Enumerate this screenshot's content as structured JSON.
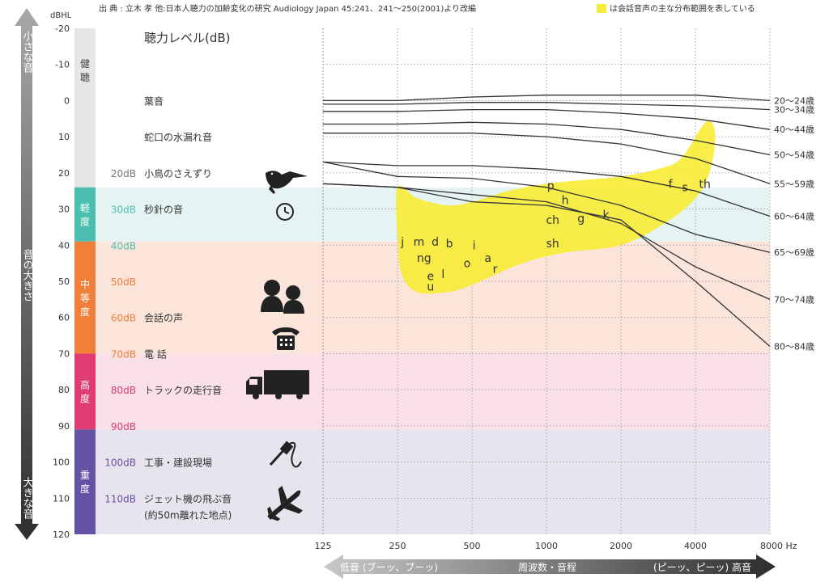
{
  "header": {
    "source": "出 典 : 立木 孝 他:日本人聴力の加齢変化の研究 Audiology Japan 45:241、241～250(2001)より改編",
    "legend_note": "は会話音声の主な分布範囲を表している",
    "y_unit": "dBHL"
  },
  "loudness_arrow": {
    "top": "小さな音",
    "middle": "音の大きさ",
    "bottom": "大きな音"
  },
  "freq_arrow": {
    "left": "低音 (ブーッ、ブーッ)",
    "center": "周波数・音程",
    "right": "(ピーッ、ピーッ) 高音"
  },
  "colors": {
    "normal": "#e6e6e6",
    "mild": "#4dbfb0",
    "mild_bg": "#e5f4f2",
    "moderate": "#f07f3a",
    "moderate_bg": "#fbe5da",
    "severe": "#e03c74",
    "severe_bg": "#f8e0e6",
    "profound": "#6652a4",
    "profound_bg": "#e7e4ee",
    "speech_banana": "#f7ec3a",
    "curves": "#333333"
  },
  "bands": [
    {
      "label": "健聴",
      "from": -20,
      "to": 24,
      "color": "#e6e6e6",
      "bg": "#ffffff",
      "text": "#444444"
    },
    {
      "label": "軽度",
      "from": 24,
      "to": 39,
      "color": "#4dbfb0",
      "bg": "#e5f4f2",
      "text": "#ffffff"
    },
    {
      "label": "中等度",
      "from": 39,
      "to": 70,
      "color": "#f07f3a",
      "bg": "#fbe5da",
      "text": "#ffffff"
    },
    {
      "label": "高度",
      "from": 70,
      "to": 91,
      "color": "#e03c74",
      "bg": "#f8e0e6",
      "text": "#ffffff"
    },
    {
      "label": "重度",
      "from": 91,
      "to": 120,
      "color": "#6652a4",
      "bg": "#e7e4ee",
      "text": "#ffffff"
    }
  ],
  "level_title": "聴力レベル(dB)",
  "sound_examples": [
    {
      "db": "",
      "text": "葉音",
      "y": 0
    },
    {
      "db": "",
      "text": "蛇口の水漏れ音",
      "y": 10
    },
    {
      "db": "20dB",
      "text": "小鳥のさえずり",
      "y": 20,
      "dbcolor": "#777777"
    },
    {
      "db": "30dB",
      "text": "秒針の音",
      "y": 30,
      "dbcolor": "#4dbfb0"
    },
    {
      "db": "40dB",
      "text": "",
      "y": 40,
      "dbcolor": "#4dbfb0"
    },
    {
      "db": "50dB",
      "text": "",
      "y": 50,
      "dbcolor": "#f07f3a"
    },
    {
      "db": "60dB",
      "text": "会話の声",
      "y": 60,
      "dbcolor": "#f07f3a"
    },
    {
      "db": "70dB",
      "text": "電 話",
      "y": 70,
      "dbcolor": "#f07f3a"
    },
    {
      "db": "80dB",
      "text": "トラックの走行音",
      "y": 80,
      "dbcolor": "#e03c74"
    },
    {
      "db": "90dB",
      "text": "",
      "y": 90,
      "dbcolor": "#e03c74"
    },
    {
      "db": "100dB",
      "text": "工事・建設現場",
      "y": 100,
      "dbcolor": "#6652a4"
    },
    {
      "db": "110dB",
      "text": "ジェット機の飛ぶ音",
      "y": 110,
      "dbcolor": "#6652a4"
    },
    {
      "db": "",
      "text": "(約50m離れた地点)",
      "y": 114.5
    }
  ],
  "icons": [
    "bird-icon",
    "clock-icon",
    "conversation-icon",
    "telephone-icon",
    "truck-icon",
    "drill-icon",
    "airplane-icon"
  ],
  "chart_data": {
    "type": "line",
    "title": "",
    "xlabel": "Hz",
    "ylabel": "dBHL",
    "x_scale": "log2",
    "ylim": [
      120,
      -20
    ],
    "y_reversed": true,
    "grid": true,
    "y_ticks": [
      "-20",
      "-10",
      "0",
      "10",
      "20",
      "30",
      "40",
      "50",
      "60",
      "70",
      "80",
      "90",
      "100",
      "110",
      "120"
    ],
    "x_ticks": [
      "125",
      "250",
      "500",
      "1000",
      "2000",
      "4000",
      "8000 Hz"
    ],
    "x": [
      125,
      250,
      500,
      1000,
      2000,
      4000,
      8000
    ],
    "series": [
      {
        "name": "20～24歳",
        "values": [
          0,
          0,
          -1,
          -1.5,
          -1.5,
          -1.5,
          0
        ]
      },
      {
        "name": "30～34歳",
        "values": [
          1,
          1,
          0.5,
          0.5,
          1,
          1.5,
          2.5
        ]
      },
      {
        "name": "40～44歳",
        "values": [
          3,
          3,
          2.5,
          2.5,
          3.5,
          5,
          8
        ]
      },
      {
        "name": "50～54歳",
        "values": [
          6.5,
          6.5,
          6,
          6.5,
          8,
          11,
          15
        ]
      },
      {
        "name": "55～59歳",
        "values": [
          9,
          9,
          9,
          10,
          12,
          16,
          23
        ]
      },
      {
        "name": "60～64歳",
        "values": [
          17,
          18,
          18,
          19,
          21,
          25,
          32
        ]
      },
      {
        "name": "65～69歳",
        "values": [
          17,
          21,
          21.5,
          24,
          29,
          37,
          42
        ]
      },
      {
        "name": "70～74歳",
        "values": [
          23,
          24,
          26,
          28,
          34,
          46,
          55
        ]
      },
      {
        "name": "80～84歳",
        "values": [
          23,
          24,
          28,
          29,
          33,
          50,
          68
        ]
      }
    ],
    "speech_banana_polygon": [
      [
        250,
        24
      ],
      [
        300,
        27
      ],
      [
        400,
        29
      ],
      [
        500,
        28
      ],
      [
        700,
        25
      ],
      [
        1000,
        23
      ],
      [
        1400,
        22
      ],
      [
        2000,
        21
      ],
      [
        2800,
        19
      ],
      [
        3500,
        16
      ],
      [
        4400,
        6
      ],
      [
        4800,
        9
      ],
      [
        4600,
        19
      ],
      [
        4000,
        27
      ],
      [
        3000,
        34
      ],
      [
        2000,
        40
      ],
      [
        1200,
        42
      ],
      [
        800,
        45
      ],
      [
        500,
        51
      ],
      [
        400,
        53
      ],
      [
        300,
        53
      ],
      [
        260,
        48
      ],
      [
        250,
        38
      ]
    ],
    "phonemes": [
      {
        "text": "j",
        "f": 262,
        "db": 39
      },
      {
        "text": "m",
        "f": 305,
        "db": 39
      },
      {
        "text": "d",
        "f": 355,
        "db": 39
      },
      {
        "text": "b",
        "f": 405,
        "db": 39.5
      },
      {
        "text": "ng",
        "f": 320,
        "db": 43.5
      },
      {
        "text": "e",
        "f": 340,
        "db": 48.5
      },
      {
        "text": "u",
        "f": 340,
        "db": 51.5
      },
      {
        "text": "l",
        "f": 382,
        "db": 48
      },
      {
        "text": "i",
        "f": 510,
        "db": 40
      },
      {
        "text": "o",
        "f": 478,
        "db": 45
      },
      {
        "text": "a",
        "f": 580,
        "db": 43.5
      },
      {
        "text": "r",
        "f": 620,
        "db": 46.5
      },
      {
        "text": "p",
        "f": 1040,
        "db": 23.5
      },
      {
        "text": "h",
        "f": 1190,
        "db": 27.5
      },
      {
        "text": "ch",
        "f": 1060,
        "db": 33
      },
      {
        "text": "g",
        "f": 1380,
        "db": 32.5
      },
      {
        "text": "sh",
        "f": 1060,
        "db": 39.5
      },
      {
        "text": "k",
        "f": 1740,
        "db": 31.5
      },
      {
        "text": "f",
        "f": 3170,
        "db": 23
      },
      {
        "text": "s",
        "f": 3630,
        "db": 24
      },
      {
        "text": "th",
        "f": 4370,
        "db": 23
      }
    ]
  }
}
